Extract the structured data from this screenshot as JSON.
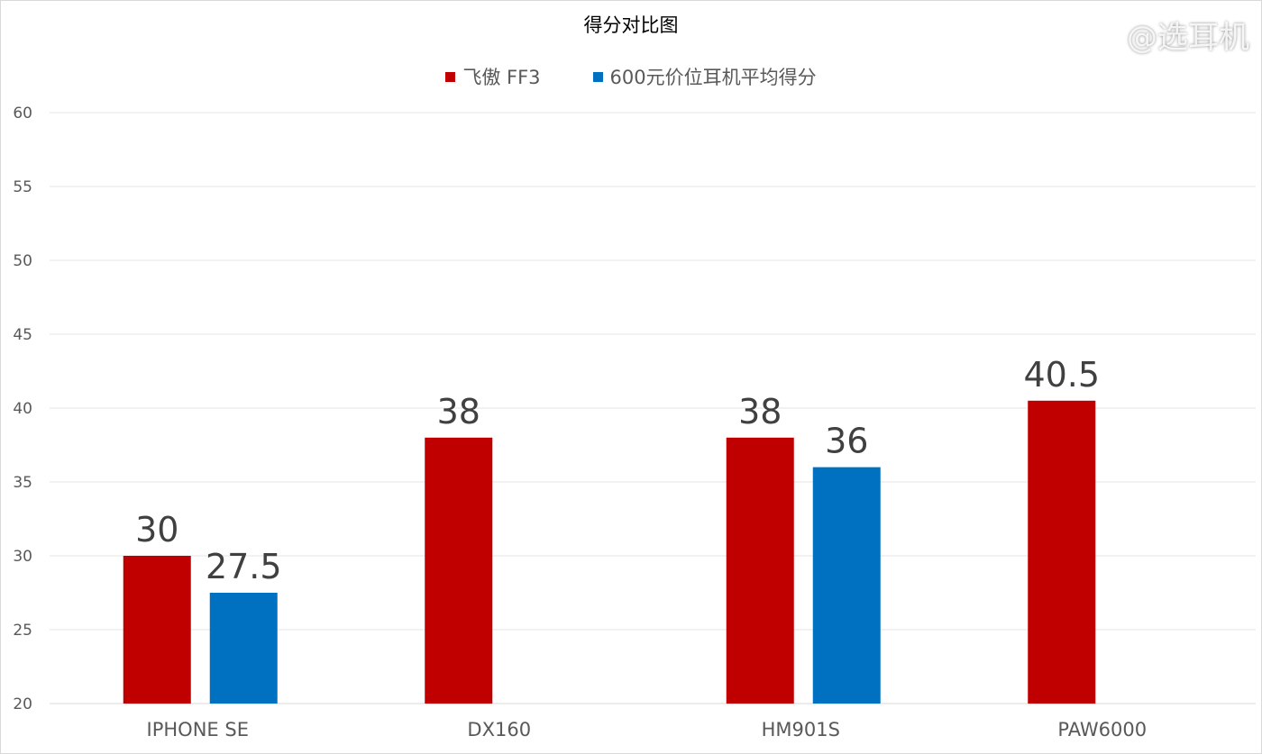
{
  "chart_data": {
    "type": "bar",
    "title": "得分对比图",
    "categories": [
      "IPHONE SE",
      "DX160",
      "HM901S",
      "PAW6000"
    ],
    "series": [
      {
        "name": "飞傲 FF3",
        "color": "#c00000",
        "values": [
          30,
          38,
          38,
          40.5
        ]
      },
      {
        "name": "600元价位耳机平均得分",
        "color": "#0070c0",
        "values": [
          27.5,
          null,
          36,
          null
        ]
      }
    ],
    "ylim": [
      20,
      60
    ],
    "yticks": [
      20,
      25,
      30,
      35,
      40,
      45,
      50,
      55,
      60
    ],
    "grid": true,
    "legend": "top-center",
    "xlabel": "",
    "ylabel": ""
  },
  "watermark": "@选耳机"
}
